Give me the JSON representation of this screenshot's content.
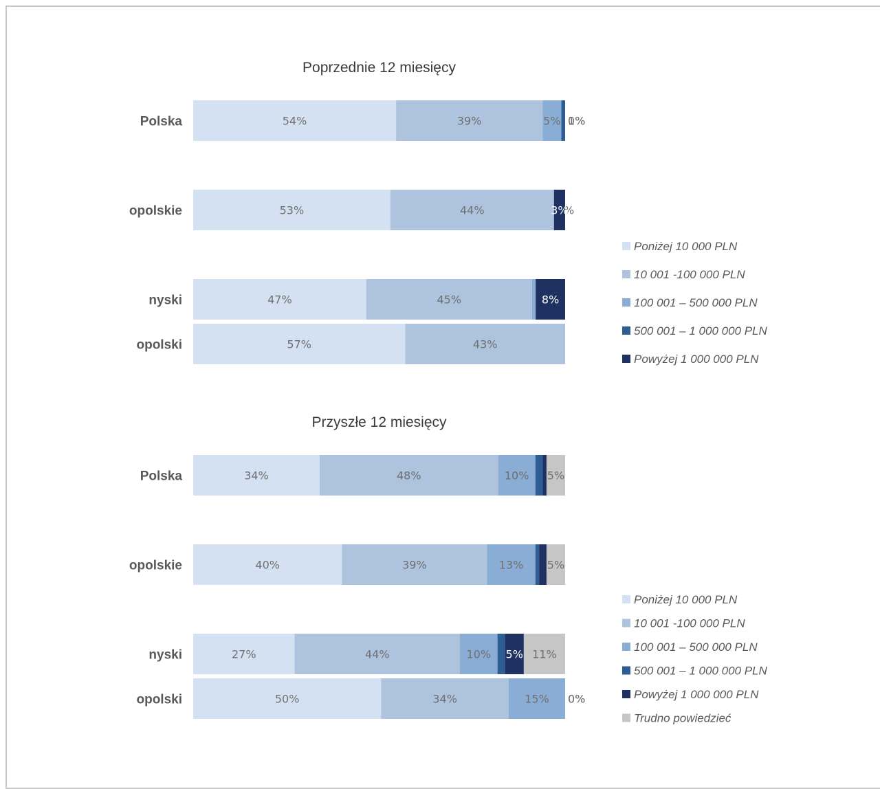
{
  "chart_data": [
    {
      "type": "bar",
      "orientation": "horizontal",
      "stacked": "percent",
      "title": "Poprzednie 12 miesięcy",
      "categories": [
        "Polska",
        "opolskie",
        "nyski",
        "opolski"
      ],
      "series": [
        {
          "name": "Poniżej 10 000 PLN",
          "color": "#d4e1f2",
          "values": [
            54,
            53,
            47,
            57
          ],
          "labels": [
            "54%",
            "53%",
            "47%",
            "57%"
          ]
        },
        {
          "name": "10 001 -100 000 PLN",
          "color": "#aec3dd",
          "values": [
            39,
            44,
            45,
            43
          ],
          "labels": [
            "39%",
            "44%",
            "45%",
            "43%"
          ]
        },
        {
          "name": "100 001 – 500 000 PLN",
          "color": "#8aadd6",
          "values": [
            5,
            0,
            1,
            0
          ],
          "labels": [
            "5%",
            "0%",
            "1%",
            ""
          ]
        },
        {
          "name": "500 001 – 1 000 000 PLN",
          "color": "#2e5d93",
          "values": [
            1,
            0,
            0,
            0
          ],
          "labels": [
            "1%",
            "",
            "",
            ""
          ]
        },
        {
          "name": "Powyżej 1 000 000 PLN",
          "color": "#1f3160",
          "values": [
            0,
            3,
            8,
            0
          ],
          "labels": [
            "0%",
            "3%",
            "8%",
            ""
          ]
        }
      ],
      "legend": "right"
    },
    {
      "type": "bar",
      "orientation": "horizontal",
      "stacked": "percent",
      "title": "Przyszłe 12 miesięcy",
      "categories": [
        "Polska",
        "opolskie",
        "nyski",
        "opolski"
      ],
      "series": [
        {
          "name": "Poniżej 10 000 PLN",
          "color": "#d4e1f2",
          "values": [
            34,
            40,
            27,
            50
          ],
          "labels": [
            "34%",
            "40%",
            "27%",
            "50%"
          ]
        },
        {
          "name": "10 001 -100 000 PLN",
          "color": "#aec3dd",
          "values": [
            48,
            39,
            44,
            34
          ],
          "labels": [
            "48%",
            "39%",
            "44%",
            "34%"
          ]
        },
        {
          "name": "100 001 – 500 000 PLN",
          "color": "#8aadd6",
          "values": [
            10,
            13,
            10,
            15
          ],
          "labels": [
            "10%",
            "13%",
            "10%",
            "15%"
          ]
        },
        {
          "name": "500 001 – 1 000 000 PLN",
          "color": "#2e5d93",
          "values": [
            2,
            1,
            2,
            0
          ],
          "labels": [
            "2%",
            "1%",
            "2%",
            "0%"
          ]
        },
        {
          "name": "Powyżej 1 000 000 PLN",
          "color": "#1f3160",
          "values": [
            1,
            2,
            5,
            0
          ],
          "labels": [
            "1%",
            "2%",
            "5%",
            "0%"
          ]
        },
        {
          "name": "Trudno powiedzieć",
          "color": "#c6c6c6",
          "values": [
            5,
            5,
            11,
            0
          ],
          "labels": [
            "5%",
            "5%",
            "11%",
            ""
          ]
        }
      ],
      "legend": "right"
    }
  ]
}
